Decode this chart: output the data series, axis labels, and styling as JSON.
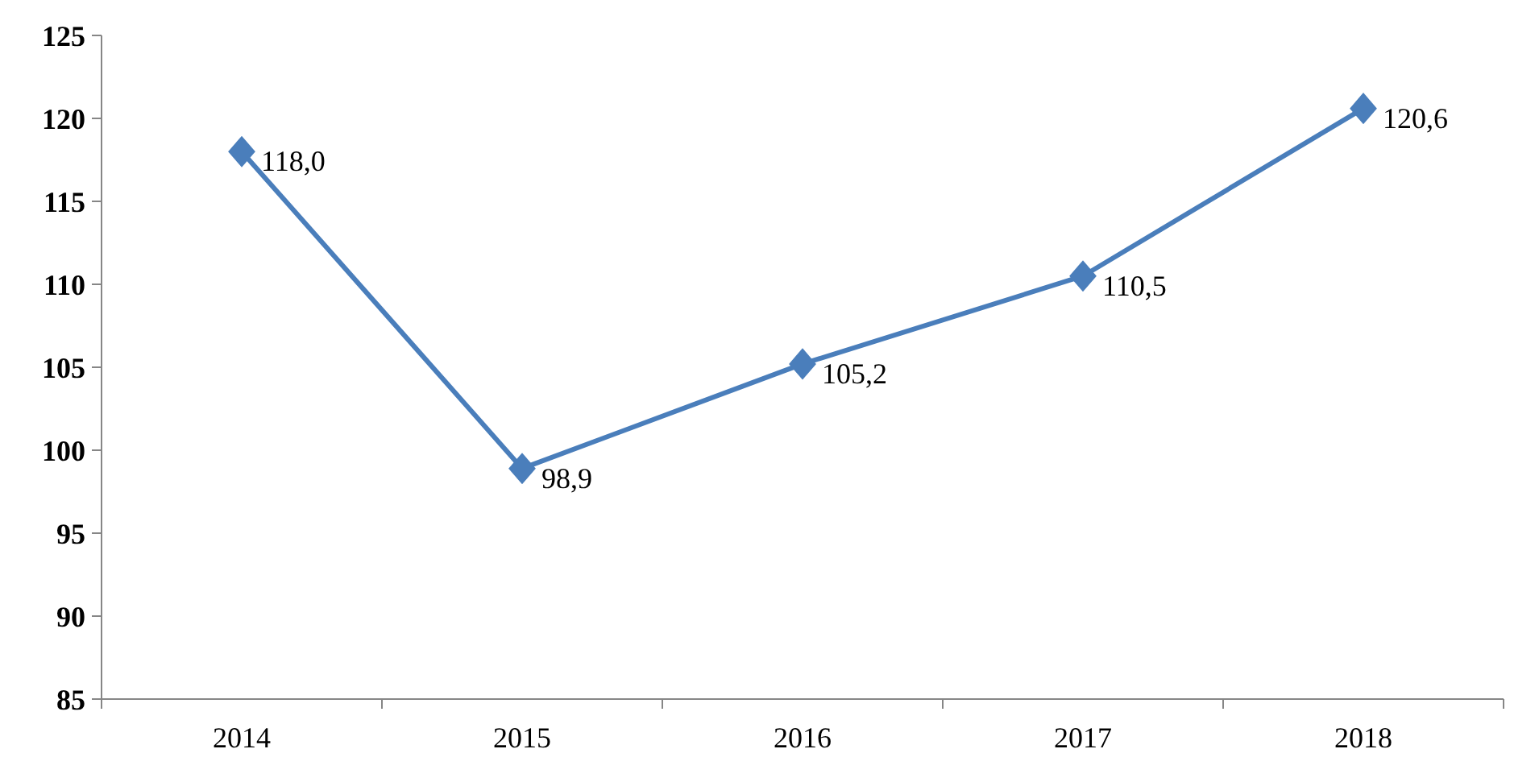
{
  "chart_data": {
    "type": "line",
    "categories": [
      "2014",
      "2015",
      "2016",
      "2017",
      "2018"
    ],
    "series": [
      {
        "color": "#4a7ebb",
        "values": [
          118.0,
          98.9,
          105.2,
          110.5,
          120.6
        ],
        "value_labels": [
          "118,0",
          "98,9",
          "105,2",
          "110,5",
          "120,6"
        ]
      }
    ],
    "ylim": [
      85,
      125
    ],
    "yticks": [
      85,
      90,
      95,
      100,
      105,
      110,
      115,
      120,
      125
    ],
    "marker": "diamond"
  }
}
